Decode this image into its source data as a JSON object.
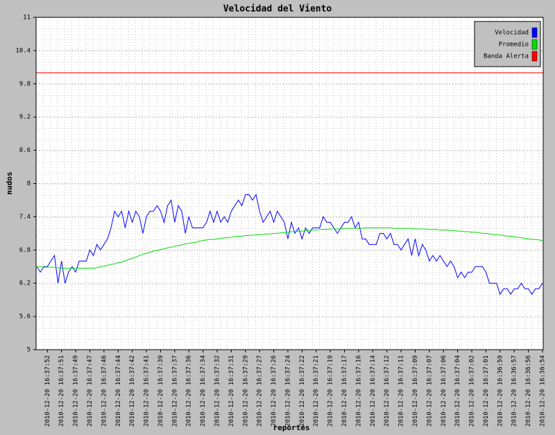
{
  "chart_data": {
    "type": "line",
    "title": "Velocidad del Viento",
    "x_label": "reportes",
    "y_label": "nudos",
    "categories": [
      null,
      null,
      null,
      "2010-12-20 16:37:52",
      null,
      null,
      null,
      "2010-12-20 16:37:51",
      null,
      null,
      null,
      "2010-12-20 16:37:49",
      null,
      null,
      null,
      "2010-12-20 16:37:47",
      null,
      null,
      null,
      "2010-12-20 16:37:46",
      null,
      null,
      null,
      "2010-12-20 16:37:44",
      null,
      null,
      null,
      "2010-12-20 16:37:42",
      null,
      null,
      null,
      "2010-12-20 16:37:41",
      null,
      null,
      null,
      "2010-12-20 16:37:39",
      null,
      null,
      null,
      "2010-12-20 16:37:37",
      null,
      null,
      null,
      "2010-12-20 16:37:36",
      null,
      null,
      null,
      "2010-12-20 16:37:34",
      null,
      null,
      null,
      "2010-12-20 16:37:32",
      null,
      null,
      null,
      "2010-12-20 16:37:31",
      null,
      null,
      null,
      "2010-12-20 16:37:29",
      null,
      null,
      null,
      "2010-12-20 16:37:27",
      null,
      null,
      null,
      "2010-12-20 16:37:26",
      null,
      null,
      null,
      "2010-12-20 16:37:24",
      null,
      null,
      null,
      "2010-12-20 16:37:22",
      null,
      null,
      null,
      "2010-12-20 16:37:21",
      null,
      null,
      null,
      "2010-12-20 16:37:19",
      null,
      null,
      null,
      "2010-12-20 16:37:17",
      null,
      null,
      null,
      "2010-12-20 16:37:16",
      null,
      null,
      null,
      "2010-12-20 16:37:14",
      null,
      null,
      null,
      "2010-12-20 16:37:12",
      null,
      null,
      null,
      "2010-12-20 16:37:11",
      null,
      null,
      null,
      "2010-12-20 16:37:09",
      null,
      null,
      null,
      "2010-12-20 16:37:07",
      null,
      null,
      null,
      "2010-12-20 16:37:06",
      null,
      null,
      null,
      "2010-12-20 16:37:04",
      null,
      null,
      null,
      "2010-12-20 16:37:02",
      null,
      null,
      null,
      "2010-12-20 16:37:01",
      null,
      null,
      null,
      "2010-12-20 16:36:59",
      null,
      null,
      null,
      "2010-12-20 16:36:57",
      null,
      null,
      null,
      "2010-12-20 16:36:56",
      null,
      null,
      null,
      "2010-12-20 16:36:54"
    ],
    "series": [
      {
        "name": "Velocidad",
        "color": "#0000ff",
        "values": [
          6.5,
          6.4,
          6.5,
          6.5,
          6.6,
          6.7,
          6.2,
          6.6,
          6.2,
          6.4,
          6.5,
          6.4,
          6.6,
          6.6,
          6.6,
          6.8,
          6.7,
          6.9,
          6.8,
          6.9,
          7.0,
          7.2,
          7.5,
          7.4,
          7.5,
          7.2,
          7.5,
          7.3,
          7.5,
          7.4,
          7.1,
          7.4,
          7.5,
          7.5,
          7.6,
          7.5,
          7.3,
          7.6,
          7.7,
          7.3,
          7.6,
          7.5,
          7.1,
          7.4,
          7.2,
          7.2,
          7.2,
          7.2,
          7.3,
          7.5,
          7.3,
          7.5,
          7.3,
          7.4,
          7.3,
          7.5,
          7.6,
          7.7,
          7.6,
          7.8,
          7.8,
          7.7,
          7.8,
          7.5,
          7.3,
          7.4,
          7.5,
          7.3,
          7.5,
          7.4,
          7.3,
          7.0,
          7.3,
          7.1,
          7.2,
          7.0,
          7.2,
          7.1,
          7.2,
          7.2,
          7.2,
          7.4,
          7.3,
          7.3,
          7.2,
          7.1,
          7.2,
          7.3,
          7.3,
          7.4,
          7.2,
          7.3,
          7.0,
          7.0,
          6.9,
          6.9,
          6.9,
          7.1,
          7.1,
          7.0,
          7.1,
          6.9,
          6.9,
          6.8,
          6.9,
          7.0,
          6.7,
          7.0,
          6.7,
          6.9,
          6.8,
          6.6,
          6.7,
          6.6,
          6.7,
          6.6,
          6.5,
          6.6,
          6.5,
          6.3,
          6.4,
          6.3,
          6.4,
          6.4,
          6.5,
          6.5,
          6.5,
          6.4,
          6.2,
          6.2,
          6.2,
          6.0,
          6.1,
          6.1,
          6.0,
          6.1,
          6.1,
          6.2,
          6.1,
          6.1,
          6.0,
          6.1,
          6.1,
          6.2
        ]
      },
      {
        "name": "Promedio",
        "color": "#00dd00",
        "values": [
          6.5,
          6.5,
          6.49,
          6.49,
          6.49,
          6.48,
          6.48,
          6.47,
          6.47,
          6.47,
          6.47,
          6.47,
          6.47,
          6.47,
          6.47,
          6.47,
          6.47,
          6.48,
          6.5,
          6.51,
          6.52,
          6.54,
          6.55,
          6.57,
          6.58,
          6.6,
          6.63,
          6.65,
          6.67,
          6.7,
          6.72,
          6.74,
          6.76,
          6.78,
          6.79,
          6.81,
          6.82,
          6.84,
          6.85,
          6.87,
          6.88,
          6.89,
          6.91,
          6.92,
          6.93,
          6.94,
          6.96,
          6.97,
          6.98,
          6.99,
          6.99,
          7.0,
          7.01,
          7.02,
          7.02,
          7.03,
          7.04,
          7.05,
          7.05,
          7.06,
          7.06,
          7.07,
          7.07,
          7.08,
          7.08,
          7.09,
          7.09,
          7.1,
          7.1,
          7.11,
          7.11,
          7.12,
          7.13,
          7.13,
          7.14,
          7.14,
          7.15,
          7.15,
          7.16,
          7.16,
          7.17,
          7.17,
          7.17,
          7.18,
          7.18,
          7.18,
          7.18,
          7.19,
          7.19,
          7.19,
          7.19,
          7.19,
          7.19,
          7.2,
          7.2,
          7.2,
          7.2,
          7.2,
          7.2,
          7.2,
          7.2,
          7.19,
          7.19,
          7.19,
          7.19,
          7.19,
          7.19,
          7.18,
          7.18,
          7.18,
          7.18,
          7.17,
          7.17,
          7.17,
          7.16,
          7.16,
          7.16,
          7.15,
          7.15,
          7.14,
          7.14,
          7.13,
          7.13,
          7.12,
          7.12,
          7.11,
          7.1,
          7.1,
          7.09,
          7.08,
          7.08,
          7.07,
          7.06,
          7.05,
          7.05,
          7.04,
          7.03,
          7.02,
          7.01,
          7.0,
          6.99,
          6.99,
          6.98,
          6.97
        ]
      }
    ],
    "reference_lines": [
      {
        "name": "Banda Alerta",
        "color": "#ff0000",
        "value": 10
      }
    ],
    "ylim": [
      5,
      11
    ],
    "yticks": [
      5,
      5.6,
      6.2,
      6.8,
      7.4,
      8,
      8.6,
      9.2,
      9.8,
      10.4,
      11
    ],
    "grid": true,
    "legend": "top-right"
  }
}
